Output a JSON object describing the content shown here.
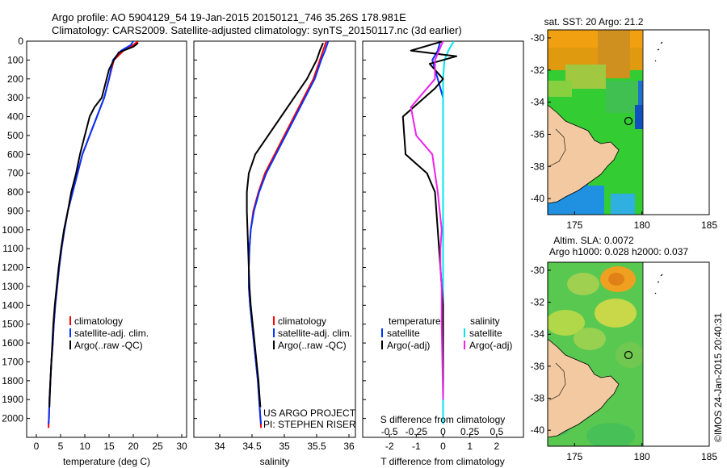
{
  "header": {
    "line1": "Argo profile: AO 5904129_54 19-Jan-2015 20150121_746 35.26S 178.981E",
    "line2": "Climatology: CARS2009. Satellite-adjusted climatology: synTS_20150117.nc (3d earlier)"
  },
  "credits": {
    "project": "US ARGO PROJECT",
    "pi": "PI: STEPHEN RISER",
    "stamp": "©IMOS 24-Jan-2015 20:40:31"
  },
  "colors": {
    "climatology": "#ff0000",
    "satellite": "#0033ff",
    "argo": "#000000",
    "sat_salinity": "#00e5ee",
    "argo_salinity": "#ee22ee"
  },
  "chart_data": [
    {
      "type": "line",
      "xlabel": "temperature (deg C)",
      "ylabel": "",
      "xlim": [
        -2,
        31
      ],
      "ylim": [
        2100,
        0
      ],
      "xticks": [
        0,
        5,
        10,
        15,
        20,
        25,
        30
      ],
      "yticks": [
        0,
        100,
        200,
        300,
        400,
        500,
        600,
        700,
        800,
        900,
        1000,
        1100,
        1200,
        1300,
        1400,
        1500,
        1600,
        1700,
        1800,
        1900,
        2000
      ],
      "legend": [
        "climatology",
        "satellite-adj. clim.",
        "Argo(..raw -QC)"
      ],
      "legend_placement": "lower-center",
      "series": [
        {
          "name": "climatology",
          "color": "#ff0000",
          "points": [
            [
              21,
              0
            ],
            [
              20,
              20
            ],
            [
              18,
              50
            ],
            [
              16,
              100
            ],
            [
              15,
              200
            ],
            [
              14,
              300
            ],
            [
              12.5,
              400
            ],
            [
              11,
              500
            ],
            [
              9.5,
              600
            ],
            [
              8.5,
              700
            ],
            [
              7.5,
              800
            ],
            [
              6.5,
              900
            ],
            [
              5.8,
              1000
            ],
            [
              5.2,
              1100
            ],
            [
              4.7,
              1200
            ],
            [
              4.3,
              1300
            ],
            [
              3.9,
              1400
            ],
            [
              3.6,
              1500
            ],
            [
              3.4,
              1600
            ],
            [
              3.1,
              1700
            ],
            [
              2.9,
              1800
            ],
            [
              2.7,
              1900
            ],
            [
              2.6,
              2000
            ],
            [
              2.5,
              2050
            ]
          ]
        },
        {
          "name": "satellite-adj. clim.",
          "color": "#0033ff",
          "points": [
            [
              20,
              0
            ],
            [
              19.5,
              20
            ],
            [
              17.5,
              50
            ],
            [
              15.8,
              100
            ],
            [
              15,
              200
            ],
            [
              14,
              300
            ],
            [
              12.5,
              400
            ],
            [
              11,
              500
            ],
            [
              9.5,
              600
            ],
            [
              8.5,
              700
            ],
            [
              7.5,
              800
            ],
            [
              6.5,
              900
            ],
            [
              5.8,
              1000
            ],
            [
              5.2,
              1100
            ],
            [
              4.7,
              1200
            ],
            [
              4.3,
              1300
            ],
            [
              3.9,
              1400
            ],
            [
              3.6,
              1500
            ],
            [
              3.4,
              1600
            ],
            [
              3.1,
              1700
            ],
            [
              2.9,
              1800
            ],
            [
              2.7,
              1900
            ],
            [
              2.6,
              2000
            ],
            [
              2.5,
              2030
            ]
          ]
        },
        {
          "name": "Argo(..raw -QC)",
          "color": "#000000",
          "points": [
            [
              21,
              10
            ],
            [
              20,
              30
            ],
            [
              17,
              60
            ],
            [
              16,
              100
            ],
            [
              15,
              150
            ],
            [
              14.5,
              200
            ],
            [
              13.5,
              300
            ],
            [
              12,
              350
            ],
            [
              11,
              400
            ],
            [
              10,
              500
            ],
            [
              9,
              600
            ],
            [
              8.2,
              700
            ],
            [
              7.2,
              800
            ],
            [
              6.5,
              900
            ],
            [
              5.7,
              1000
            ],
            [
              5.1,
              1100
            ],
            [
              4.6,
              1200
            ],
            [
              4.2,
              1300
            ],
            [
              3.8,
              1400
            ],
            [
              3.5,
              1500
            ],
            [
              3.3,
              1600
            ],
            [
              3.1,
              1700
            ],
            [
              2.9,
              1800
            ],
            [
              2.75,
              1900
            ],
            [
              2.7,
              1940
            ]
          ]
        }
      ]
    },
    {
      "type": "line",
      "xlabel": "salinity",
      "ylabel": "",
      "xlim": [
        33.6,
        36.1
      ],
      "ylim": [
        2100,
        0
      ],
      "xticks": [
        34,
        34.5,
        35,
        35.5,
        36
      ],
      "legend": [
        "climatology",
        "satellite-adj. clim.",
        "Argo(..raw -QC)"
      ],
      "legend_placement": "lower-right",
      "series": [
        {
          "name": "climatology",
          "color": "#ff0000",
          "points": [
            [
              35.65,
              0
            ],
            [
              35.6,
              50
            ],
            [
              35.55,
              100
            ],
            [
              35.45,
              200
            ],
            [
              35.3,
              300
            ],
            [
              35.15,
              400
            ],
            [
              35.0,
              500
            ],
            [
              34.85,
              600
            ],
            [
              34.7,
              700
            ],
            [
              34.6,
              800
            ],
            [
              34.52,
              900
            ],
            [
              34.48,
              1000
            ],
            [
              34.46,
              1100
            ],
            [
              34.45,
              1200
            ],
            [
              34.45,
              1300
            ],
            [
              34.47,
              1400
            ],
            [
              34.5,
              1500
            ],
            [
              34.53,
              1600
            ],
            [
              34.56,
              1700
            ],
            [
              34.59,
              1800
            ],
            [
              34.61,
              1900
            ],
            [
              34.63,
              2000
            ],
            [
              34.64,
              2050
            ]
          ]
        },
        {
          "name": "satellite-adj. clim.",
          "color": "#0033ff",
          "points": [
            [
              35.68,
              0
            ],
            [
              35.63,
              50
            ],
            [
              35.57,
              100
            ],
            [
              35.47,
              200
            ],
            [
              35.32,
              300
            ],
            [
              35.17,
              400
            ],
            [
              35.02,
              500
            ],
            [
              34.87,
              600
            ],
            [
              34.72,
              700
            ],
            [
              34.61,
              800
            ],
            [
              34.53,
              900
            ],
            [
              34.48,
              1000
            ],
            [
              34.46,
              1100
            ],
            [
              34.45,
              1200
            ],
            [
              34.45,
              1300
            ],
            [
              34.47,
              1400
            ],
            [
              34.5,
              1500
            ],
            [
              34.53,
              1600
            ],
            [
              34.56,
              1700
            ],
            [
              34.59,
              1800
            ],
            [
              34.61,
              1900
            ],
            [
              34.63,
              2000
            ],
            [
              34.64,
              2030
            ]
          ]
        },
        {
          "name": "Argo(..raw -QC)",
          "color": "#000000",
          "points": [
            [
              35.6,
              10
            ],
            [
              35.55,
              50
            ],
            [
              35.5,
              100
            ],
            [
              35.35,
              200
            ],
            [
              35.15,
              300
            ],
            [
              34.95,
              400
            ],
            [
              34.75,
              500
            ],
            [
              34.55,
              600
            ],
            [
              34.45,
              700
            ],
            [
              34.42,
              800
            ],
            [
              34.42,
              900
            ],
            [
              34.43,
              1000
            ],
            [
              34.44,
              1100
            ],
            [
              34.45,
              1200
            ],
            [
              34.46,
              1300
            ],
            [
              34.48,
              1400
            ],
            [
              34.51,
              1500
            ],
            [
              34.54,
              1600
            ],
            [
              34.57,
              1700
            ],
            [
              34.6,
              1800
            ],
            [
              34.62,
              1900
            ],
            [
              34.63,
              1940
            ]
          ]
        }
      ]
    },
    {
      "type": "line",
      "xlabel": "T difference from climatology",
      "xlabel_top": "S difference from climatology",
      "ylabel": "",
      "xlim": [
        -3,
        3
      ],
      "ylim": [
        2100,
        0
      ],
      "xticks": [
        -2,
        -1,
        0,
        1,
        2
      ],
      "xticks_top": [
        "-0.5",
        "-0.25",
        "0",
        "0.25",
        "0.5"
      ],
      "legend_temperature_title": "temperature",
      "legend_salinity_title": "salinity",
      "legend_temperature": [
        "satellite",
        "Argo(-adj)"
      ],
      "legend_salinity": [
        "satellite",
        "Argo(-adj)"
      ],
      "legend_placement": "lower-center",
      "series": [
        {
          "name": "T satellite",
          "color": "#0033ff",
          "points": [
            [
              -0.1,
              0
            ],
            [
              -0.2,
              50
            ],
            [
              -0.4,
              100
            ],
            [
              -0.2,
              200
            ],
            [
              0,
              300
            ],
            [
              0,
              500
            ],
            [
              0,
              1000
            ],
            [
              0,
              2030
            ]
          ]
        },
        {
          "name": "S satellite",
          "color": "#00e5ee",
          "points": [
            [
              0.4,
              0
            ],
            [
              0.2,
              50
            ],
            [
              0.05,
              100
            ],
            [
              0,
              200
            ],
            [
              0,
              2030
            ]
          ]
        },
        {
          "name": "T Argo(-adj)",
          "color": "#000000",
          "points": [
            [
              0,
              0
            ],
            [
              -1.2,
              50
            ],
            [
              0.5,
              80
            ],
            [
              -0.5,
              120
            ],
            [
              0,
              200
            ],
            [
              -0.3,
              250
            ],
            [
              -1.5,
              400
            ],
            [
              -1.4,
              600
            ],
            [
              -0.6,
              700
            ],
            [
              -0.3,
              800
            ],
            [
              -0.2,
              1000
            ],
            [
              -0.1,
              1200
            ],
            [
              0,
              1400
            ],
            [
              0,
              1900
            ]
          ]
        },
        {
          "name": "S Argo(-adj)",
          "color": "#ee22ee",
          "points": [
            [
              0,
              0
            ],
            [
              -0.3,
              100
            ],
            [
              -0.3,
              200
            ],
            [
              -1.2,
              350
            ],
            [
              -1.0,
              500
            ],
            [
              -0.4,
              600
            ],
            [
              -0.3,
              700
            ],
            [
              -0.2,
              800
            ],
            [
              -0.05,
              1000
            ],
            [
              -0.1,
              1100
            ],
            [
              -0.1,
              1200
            ],
            [
              -0.05,
              1300
            ],
            [
              -0.05,
              1500
            ],
            [
              0,
              1900
            ]
          ]
        }
      ]
    },
    {
      "type": "heatmap",
      "title": "sat. SST: 20 Argo: 21.2",
      "xlim": [
        173,
        185
      ],
      "ylim": [
        -41,
        -29.5
      ],
      "xticks": [
        175,
        180,
        185
      ],
      "yticks": [
        -30,
        -32,
        -34,
        -36,
        -38,
        -40
      ],
      "float_position": [
        178.98,
        -35.26
      ]
    },
    {
      "type": "heatmap",
      "title": "Altim. SLA: 0.0072",
      "subtitle": "Argo h1000: 0.028 h2000: 0.037",
      "xlim": [
        173,
        185
      ],
      "ylim": [
        -41,
        -29.5
      ],
      "xticks": [
        175,
        180,
        185
      ],
      "yticks": [
        -30,
        -32,
        -34,
        -36,
        -38,
        -40
      ],
      "float_position": [
        178.98,
        -35.26
      ]
    }
  ]
}
